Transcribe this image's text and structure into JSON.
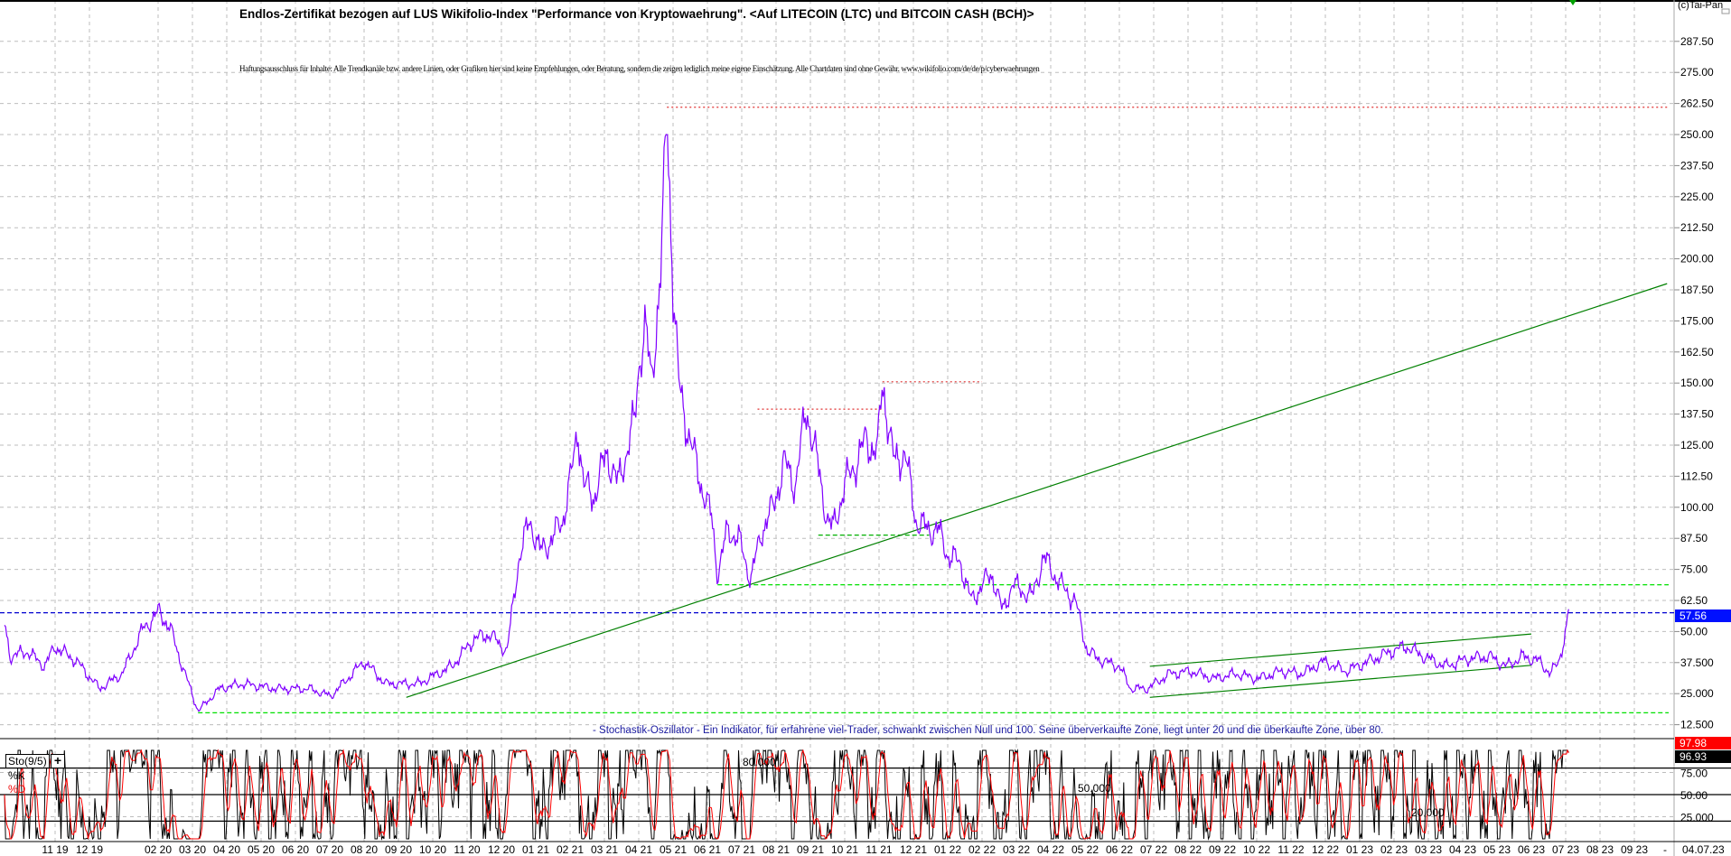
{
  "header": {
    "title": "Endlos-Zertifikat bezogen auf LUS Wikifolio-Index \"Performance von Kryptowaehrung\". <Auf LITECOIN (LTC) und BITCOIN CASH (BCH)>",
    "disclaimer": "Haftungsausschluss für Inhalte: Alle Trendkanäle bzw. andere Linien, oder Grafiken hier sind keine Empfehlungen, oder Beratung, sondern die zeigen lediglich meine eigene Einschätzung. Alle Chartdaten sind ohne Gewähr. www.wikifolio.com/de/de/p/cyberwaehrungen",
    "copyright": "(c)Tai-Pan"
  },
  "colors": {
    "price_line": "#8000ff",
    "trend_line": "#008000",
    "support_line": "#00e000",
    "resistance_line": "#e03030",
    "last_price_line": "#0000d0",
    "k_line": "#000000",
    "d_line": "#ff0000",
    "grid": "#bdbdbd"
  },
  "chart_data": [
    {
      "type": "line",
      "title": "",
      "ylim": [
        0,
        300
      ],
      "y_ticks": [
        "287.50",
        "275.00",
        "262.50",
        "250.00",
        "237.50",
        "225.00",
        "212.50",
        "200.00",
        "187.50",
        "175.00",
        "162.50",
        "150.00",
        "137.50",
        "125.00",
        "112.50",
        "100.00",
        "87.50",
        "75.00",
        "62.50",
        "50.00",
        "37.500",
        "25.000",
        "12.500"
      ],
      "y_tick_values": [
        287.5,
        275,
        262.5,
        250,
        237.5,
        225,
        212.5,
        200,
        187.5,
        175,
        162.5,
        150,
        137.5,
        125,
        112.5,
        100,
        87.5,
        75,
        62.5,
        50,
        37.5,
        25,
        12.5
      ],
      "grid": true,
      "last_value_label": "57.56",
      "last_value": 57.56,
      "series": [
        {
          "points": [
            [
              "2019-09-17",
              53
            ],
            [
              "2019-09-22",
              40
            ],
            [
              "2019-10-07",
              42
            ],
            [
              "2019-10-22",
              36
            ],
            [
              "2019-11-01",
              44
            ],
            [
              "2019-11-20",
              38
            ],
            [
              "2019-12-10",
              27
            ],
            [
              "2019-12-30",
              33
            ],
            [
              "2020-01-18",
              51
            ],
            [
              "2020-02-02",
              58
            ],
            [
              "2020-02-12",
              51
            ],
            [
              "2020-02-21",
              38
            ],
            [
              "2020-03-06",
              18
            ],
            [
              "2020-03-25",
              27
            ],
            [
              "2020-04-15",
              29
            ],
            [
              "2020-05-14",
              27
            ],
            [
              "2020-06-13",
              27
            ],
            [
              "2020-07-02",
              24
            ],
            [
              "2020-08-01",
              38
            ],
            [
              "2020-08-20",
              29
            ],
            [
              "2020-09-19",
              29
            ],
            [
              "2020-10-18",
              36
            ],
            [
              "2020-11-07",
              47
            ],
            [
              "2020-11-21",
              49
            ],
            [
              "2020-12-06",
              42
            ],
            [
              "2020-12-16",
              78
            ],
            [
              "2020-12-26",
              95
            ],
            [
              "2021-01-05",
              82
            ],
            [
              "2021-01-15",
              87
            ],
            [
              "2021-01-25",
              95
            ],
            [
              "2021-02-04",
              118
            ],
            [
              "2021-02-08",
              133
            ],
            [
              "2021-02-13",
              109
            ],
            [
              "2021-02-22",
              104
            ],
            [
              "2021-03-03",
              122
            ],
            [
              "2021-03-13",
              109
            ],
            [
              "2021-03-23",
              127
            ],
            [
              "2021-03-28",
              135
            ],
            [
              "2021-04-02",
              162
            ],
            [
              "2021-04-07",
              173
            ],
            [
              "2021-04-12",
              149
            ],
            [
              "2021-04-21",
              198
            ],
            [
              "2021-04-26",
              260
            ],
            [
              "2021-05-01",
              189
            ],
            [
              "2021-05-06",
              149
            ],
            [
              "2021-05-16",
              127
            ],
            [
              "2021-05-26",
              109
            ],
            [
              "2021-06-05",
              95
            ],
            [
              "2021-06-10",
              73
            ],
            [
              "2021-06-19",
              91
            ],
            [
              "2021-06-29",
              87
            ],
            [
              "2021-07-09",
              71
            ],
            [
              "2021-07-19",
              91
            ],
            [
              "2021-07-29",
              100
            ],
            [
              "2021-08-08",
              118
            ],
            [
              "2021-08-18",
              109
            ],
            [
              "2021-08-28",
              140
            ],
            [
              "2021-09-07",
              118
            ],
            [
              "2021-09-16",
              95
            ],
            [
              "2021-09-21",
              91
            ],
            [
              "2021-10-01",
              109
            ],
            [
              "2021-10-11",
              118
            ],
            [
              "2021-10-20",
              127
            ],
            [
              "2021-10-30",
              122
            ],
            [
              "2021-11-04",
              151
            ],
            [
              "2021-11-14",
              118
            ],
            [
              "2021-11-24",
              122
            ],
            [
              "2021-12-03",
              95
            ],
            [
              "2021-12-13",
              91
            ],
            [
              "2021-12-23",
              91
            ],
            [
              "2022-01-02",
              80
            ],
            [
              "2022-01-12",
              78
            ],
            [
              "2022-01-22",
              62
            ],
            [
              "2022-02-01",
              69
            ],
            [
              "2022-02-10",
              73
            ],
            [
              "2022-02-19",
              58
            ],
            [
              "2022-02-28",
              69
            ],
            [
              "2022-03-15",
              64
            ],
            [
              "2022-03-25",
              80
            ],
            [
              "2022-04-04",
              73
            ],
            [
              "2022-04-13",
              67
            ],
            [
              "2022-04-23",
              62
            ],
            [
              "2022-05-03",
              42
            ],
            [
              "2022-05-17",
              38
            ],
            [
              "2022-06-01",
              36
            ],
            [
              "2022-06-11",
              27
            ],
            [
              "2022-06-26",
              27
            ],
            [
              "2022-07-15",
              33
            ],
            [
              "2022-08-04",
              34
            ],
            [
              "2022-08-24",
              31
            ],
            [
              "2022-09-13",
              33
            ],
            [
              "2022-10-02",
              31
            ],
            [
              "2022-10-22",
              34
            ],
            [
              "2022-11-11",
              33
            ],
            [
              "2022-11-30",
              38
            ],
            [
              "2022-12-19",
              34
            ],
            [
              "2023-01-09",
              38
            ],
            [
              "2023-01-29",
              42
            ],
            [
              "2023-02-12",
              44
            ],
            [
              "2023-02-27",
              40
            ],
            [
              "2023-03-16",
              36
            ],
            [
              "2023-04-05",
              39
            ],
            [
              "2023-04-25",
              40
            ],
            [
              "2023-05-09",
              36
            ],
            [
              "2023-05-24",
              40
            ],
            [
              "2023-06-08",
              38
            ],
            [
              "2023-06-18",
              33
            ],
            [
              "2023-06-25",
              38
            ],
            [
              "2023-07-01",
              49
            ],
            [
              "2023-07-04",
              59
            ]
          ]
        }
      ],
      "annotations": [
        {
          "kind": "resistance",
          "style": "dotted",
          "color": "#e03030",
          "value": 261,
          "from": "2021-04-26",
          "to": "2023-10-01"
        },
        {
          "kind": "resistance",
          "style": "dotted",
          "color": "#e03030",
          "value": 139.5,
          "from": "2021-07-15",
          "to": "2021-11-04"
        },
        {
          "kind": "resistance",
          "style": "dotted",
          "color": "#e03030",
          "value": 150.5,
          "from": "2021-11-04",
          "to": "2022-02-01"
        },
        {
          "kind": "support",
          "style": "dashed",
          "color": "#00b000",
          "value": 88.8,
          "from": "2021-09-08",
          "to": "2021-12-15"
        },
        {
          "kind": "support",
          "style": "dashed",
          "color": "#00e000",
          "value": 68.8,
          "from": "2021-06-10",
          "to": "2023-10-01"
        },
        {
          "kind": "support",
          "style": "dashed",
          "color": "#00e000",
          "value": 17.3,
          "from": "2020-03-06",
          "to": "2023-10-01"
        },
        {
          "kind": "last-price",
          "style": "dashed",
          "color": "#0000d0",
          "value": 57.56
        },
        {
          "kind": "trend",
          "style": "solid",
          "color": "#008000",
          "from": [
            "2020-09-08",
            23.5
          ],
          "to": [
            "2023-09-30",
            190
          ]
        },
        {
          "kind": "channel-upper",
          "style": "solid",
          "color": "#008000",
          "from": [
            "2022-06-28",
            36
          ],
          "to": [
            "2023-06-01",
            49
          ]
        },
        {
          "kind": "channel-lower",
          "style": "solid",
          "color": "#008000",
          "from": [
            "2022-06-28",
            23.5
          ],
          "to": [
            "2023-06-01",
            36.4
          ]
        }
      ]
    },
    {
      "type": "line",
      "title": "Sto(9/5)",
      "note": "- Stochastik-Oszillator - Ein Indikator, für erfahrene viel-Trader, schwankt zwischen Null und 100. Seine überverkaufte Zone, liegt unter 20 und die überkaufte Zone, über 80.",
      "ylim": [
        0,
        100
      ],
      "series": [
        {
          "name": "%K",
          "last": 97.98,
          "last_label": "97.98"
        },
        {
          "name": "%D",
          "last": 96.93,
          "last_label": "96.93"
        }
      ],
      "levels": [
        {
          "value": 80,
          "label": "80.000"
        },
        {
          "value": 50,
          "label": "50.000"
        },
        {
          "value": 20,
          "label": "20.000"
        }
      ],
      "y_ticks": [
        "75.00",
        "50.00",
        "25.000"
      ]
    }
  ],
  "x_axis": {
    "ticks": [
      [
        "2019-11-01",
        "11 19"
      ],
      [
        "2019-12-01",
        "12 19"
      ],
      [
        "2020-02-01",
        "02 20"
      ],
      [
        "2020-03-01",
        "03 20"
      ],
      [
        "2020-04-01",
        "04 20"
      ],
      [
        "2020-05-01",
        "05 20"
      ],
      [
        "2020-06-01",
        "06 20"
      ],
      [
        "2020-07-01",
        "07 20"
      ],
      [
        "2020-08-01",
        "08 20"
      ],
      [
        "2020-09-01",
        "09 20"
      ],
      [
        "2020-10-01",
        "10 20"
      ],
      [
        "2020-11-01",
        "11 20"
      ],
      [
        "2020-12-01",
        "12 20"
      ],
      [
        "2021-01-01",
        "01 21"
      ],
      [
        "2021-02-01",
        "02 21"
      ],
      [
        "2021-03-01",
        "03 21"
      ],
      [
        "2021-04-01",
        "04 21"
      ],
      [
        "2021-05-01",
        "05 21"
      ],
      [
        "2021-06-01",
        "06 21"
      ],
      [
        "2021-07-01",
        "07 21"
      ],
      [
        "2021-08-01",
        "08 21"
      ],
      [
        "2021-09-01",
        "09 21"
      ],
      [
        "2021-10-01",
        "10 21"
      ],
      [
        "2021-11-01",
        "11 21"
      ],
      [
        "2021-12-01",
        "12 21"
      ],
      [
        "2022-01-01",
        "01 22"
      ],
      [
        "2022-02-01",
        "02 22"
      ],
      [
        "2022-03-01",
        "03 22"
      ],
      [
        "2022-04-01",
        "04 22"
      ],
      [
        "2022-05-01",
        "05 22"
      ],
      [
        "2022-06-01",
        "06 22"
      ],
      [
        "2022-07-01",
        "07 22"
      ],
      [
        "2022-08-01",
        "08 22"
      ],
      [
        "2022-09-01",
        "09 22"
      ],
      [
        "2022-10-01",
        "10 22"
      ],
      [
        "2022-11-01",
        "11 22"
      ],
      [
        "2022-12-01",
        "12 22"
      ],
      [
        "2023-01-01",
        "01 23"
      ],
      [
        "2023-02-01",
        "02 23"
      ],
      [
        "2023-03-01",
        "03 23"
      ],
      [
        "2023-04-01",
        "04 23"
      ],
      [
        "2023-05-01",
        "05 23"
      ],
      [
        "2023-06-01",
        "06 23"
      ],
      [
        "2023-07-01",
        "07 23"
      ],
      [
        "2023-08-01",
        "08 23"
      ],
      [
        "2023-09-01",
        "09 23"
      ]
    ],
    "separator": "-",
    "current_date": "04.07.23"
  }
}
